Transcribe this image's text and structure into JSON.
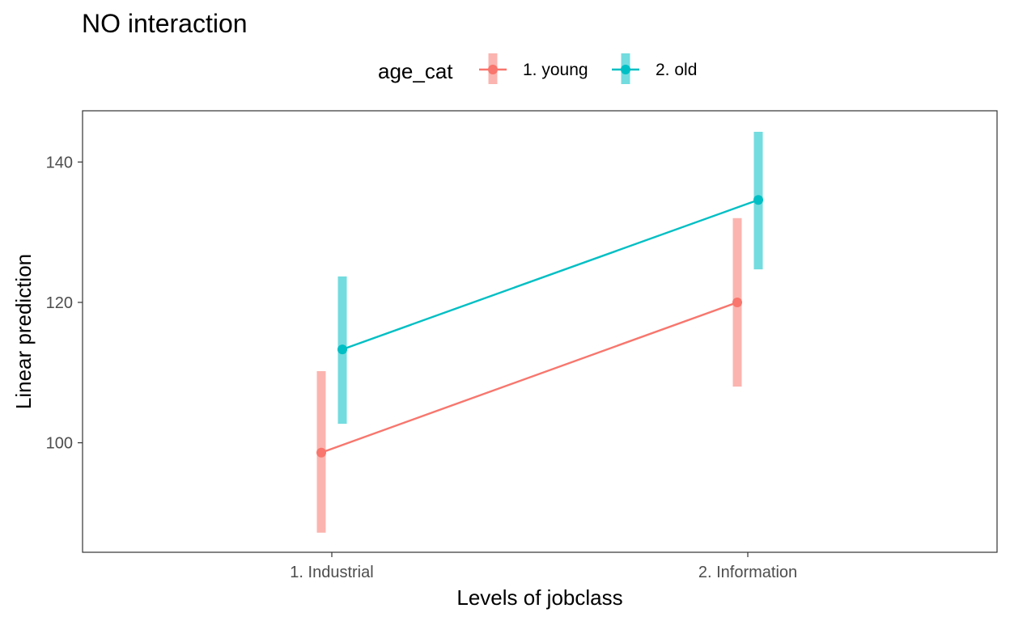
{
  "chart_data": {
    "type": "line",
    "title": "NO interaction",
    "xlabel": "Levels of jobclass",
    "ylabel": "Linear prediction",
    "categories": [
      "1. Industrial",
      "2. Information"
    ],
    "yticks": [
      100,
      120,
      140
    ],
    "ylim": [
      84.4,
      147.3
    ],
    "grid": false,
    "legend": {
      "title": "age_cat",
      "placement": "top"
    },
    "series": [
      {
        "name": "1. young",
        "color": "#F8766D",
        "values": [
          98.6,
          120.0
        ],
        "ci_low": [
          87.2,
          108.0
        ],
        "ci_high": [
          110.2,
          132.0
        ]
      },
      {
        "name": "2. old",
        "color": "#00BFC4",
        "values": [
          113.3,
          134.6
        ],
        "ci_low": [
          102.7,
          124.7
        ],
        "ci_high": [
          123.7,
          144.3
        ]
      }
    ]
  }
}
